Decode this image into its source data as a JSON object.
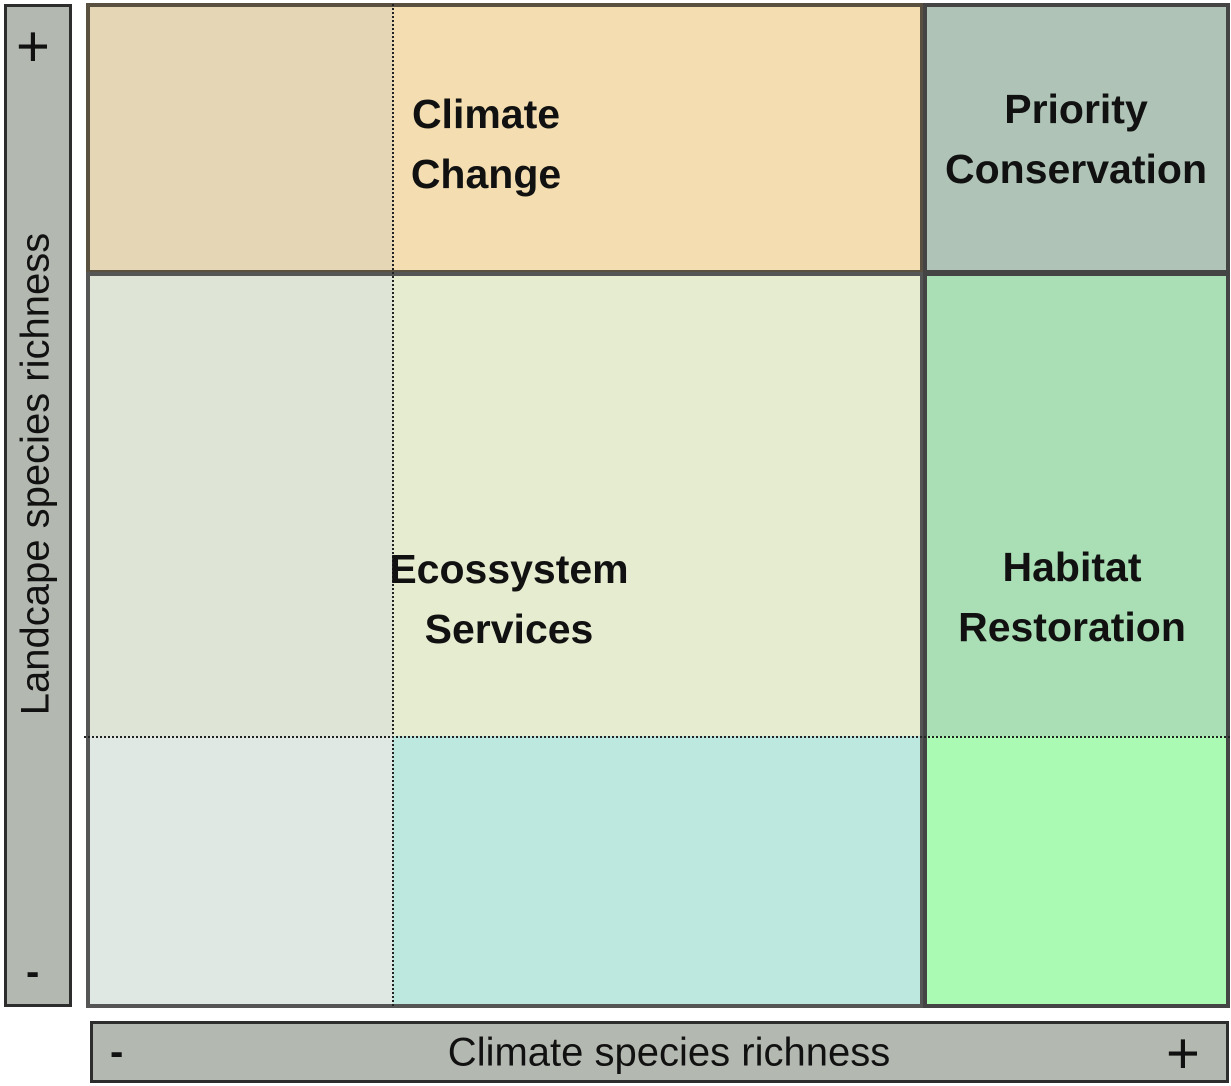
{
  "y_axis": {
    "title": "Landcape species richness",
    "high": "+",
    "low": "-"
  },
  "x_axis": {
    "title": "Climate species richness",
    "low": "-",
    "high": "+"
  },
  "regions": {
    "climate_change": {
      "line1": "Climate",
      "line2": "Change"
    },
    "priority_conservation": {
      "line1": "Priority",
      "line2": "Conservation"
    },
    "ecosystem_services": {
      "line1": "Ecossystem",
      "line2": "Services"
    },
    "habitat_restoration": {
      "line1": "Habitat",
      "line2": "Restoration"
    }
  },
  "colors": {
    "axis_bar": "#b3b9b1",
    "climate_change_left": "#e5d7b6",
    "climate_change_right": "#f4deb1",
    "priority_conservation": "#afc4b7",
    "ecosystem_upper_left": "#dee5d7",
    "ecosystem_upper_right": "#e6ecd0",
    "ecosystem_lower_left": "#e0e8e3",
    "ecosystem_lower_right": "#bde8df",
    "habitat_upper": "#aadeb4",
    "habitat_lower": "#abfab3"
  }
}
